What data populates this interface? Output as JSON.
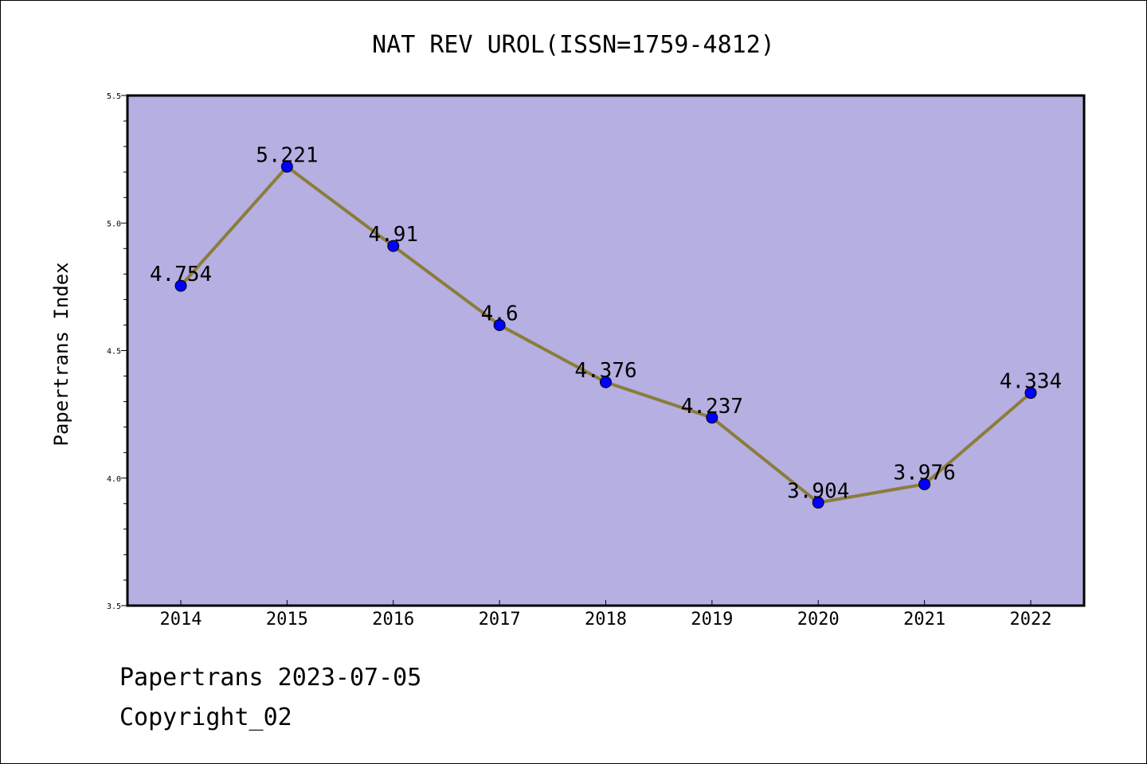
{
  "chart_data": {
    "type": "line",
    "title": "NAT REV UROL(ISSN=1759-4812)",
    "xlabel": "",
    "ylabel": "Papertrans Index",
    "categories": [
      "2014",
      "2015",
      "2016",
      "2017",
      "2018",
      "2019",
      "2020",
      "2021",
      "2022"
    ],
    "values": [
      4.754,
      5.221,
      4.91,
      4.6,
      4.376,
      4.237,
      3.904,
      3.976,
      4.334
    ],
    "value_labels": [
      "4.754",
      "5.221",
      "4.91",
      "4.6",
      "4.376",
      "4.237",
      "3.904",
      "3.976",
      "4.334"
    ],
    "ylim": [
      3.5,
      5.5
    ],
    "y_ticks": [
      "3.5",
      "4.0",
      "4.5",
      "5.0",
      "5.5"
    ],
    "grid": false,
    "colors": {
      "plot_background": "#b5afe2",
      "line": "#8b7d3a",
      "marker": "#0000ff"
    }
  },
  "footer": {
    "date_line": "Papertrans 2023-07-05",
    "copyright_line": "Copyright_02"
  }
}
